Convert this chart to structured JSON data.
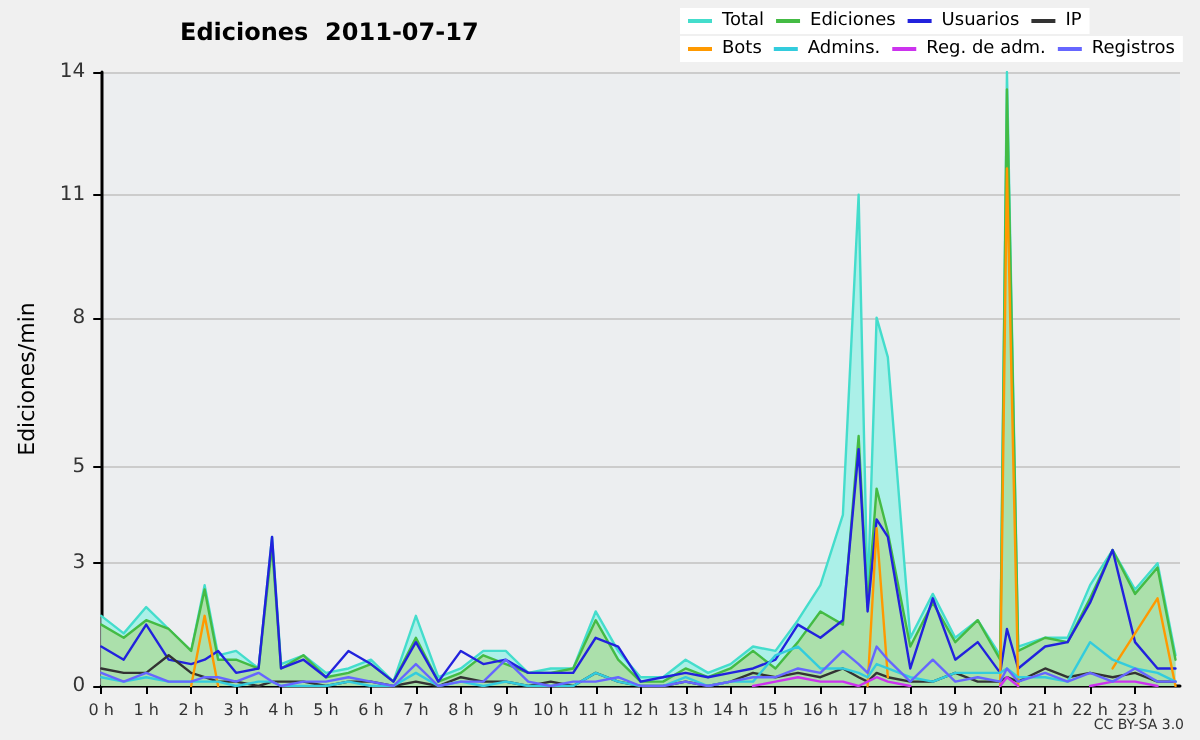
{
  "chart_data": {
    "type": "line",
    "title": "Ediciones  2011-07-17",
    "ylabel": "Ediciones/min",
    "annotations": [
      "CC BY-SA 3.0"
    ],
    "x": [
      0,
      0.5,
      1,
      1.5,
      2,
      2.3,
      2.6,
      3,
      3.5,
      3.8,
      4,
      4.5,
      5,
      5.5,
      6,
      6.5,
      7,
      7.5,
      8,
      8.5,
      9,
      9.5,
      10,
      10.5,
      11,
      11.5,
      12,
      12.5,
      13,
      13.5,
      14,
      14.5,
      15,
      15.5,
      16,
      16.5,
      16.85,
      17.05,
      17.25,
      17.5,
      18,
      18.5,
      19,
      19.5,
      20,
      20.15,
      20.4,
      21,
      21.5,
      22,
      22.5,
      23,
      23.5,
      23.9
    ],
    "series": [
      {
        "name": "Total",
        "type": "area",
        "color": "#44ddcc",
        "values": [
          1.6,
          1.2,
          1.8,
          1.3,
          0.8,
          2.3,
          0.7,
          0.8,
          0.4,
          3.4,
          0.5,
          0.7,
          0.3,
          0.4,
          0.6,
          0.1,
          1.6,
          0.2,
          0.4,
          0.8,
          0.8,
          0.3,
          0.4,
          0.4,
          1.7,
          0.8,
          0.2,
          0.2,
          0.6,
          0.3,
          0.5,
          0.9,
          0.8,
          1.5,
          2.3,
          3.9,
          11.2,
          2.0,
          8.4,
          7.5,
          1.1,
          2.1,
          1.1,
          1.5,
          0.7,
          14,
          0.9,
          1.1,
          1.1,
          2.3,
          3.1,
          2.2,
          2.8,
          0.7
        ]
      },
      {
        "name": "Ediciones",
        "type": "area",
        "color": "#44bb44",
        "values": [
          1.4,
          1.1,
          1.5,
          1.3,
          0.8,
          2.2,
          0.6,
          0.6,
          0.4,
          3.2,
          0.4,
          0.7,
          0.2,
          0.3,
          0.5,
          0.1,
          1.1,
          0.1,
          0.3,
          0.7,
          0.5,
          0.3,
          0.3,
          0.4,
          1.5,
          0.6,
          0.1,
          0.1,
          0.4,
          0.2,
          0.4,
          0.8,
          0.4,
          1.0,
          1.7,
          1.4,
          5.7,
          1.8,
          4.5,
          3.5,
          0.9,
          1.9,
          1.0,
          1.5,
          0.6,
          13.6,
          0.8,
          1.1,
          1.0,
          2.0,
          3.1,
          2.1,
          2.7,
          0.6
        ]
      },
      {
        "name": "Usuarios",
        "type": "line",
        "color": "#2222dd",
        "values": [
          0.9,
          0.6,
          1.4,
          0.6,
          0.5,
          0.6,
          0.8,
          0.3,
          0.4,
          3.4,
          0.4,
          0.6,
          0.2,
          0.8,
          0.5,
          0.1,
          1.0,
          0.1,
          0.8,
          0.5,
          0.6,
          0.3,
          0.3,
          0.3,
          1.1,
          0.9,
          0.1,
          0.2,
          0.3,
          0.2,
          0.3,
          0.4,
          0.6,
          1.4,
          1.1,
          1.5,
          5.4,
          1.7,
          3.8,
          3.4,
          0.4,
          2.0,
          0.6,
          1.0,
          0.3,
          1.3,
          0.4,
          0.9,
          1.0,
          1.9,
          3.1,
          1.0,
          0.4,
          0.4
        ]
      },
      {
        "name": "IP",
        "type": "line",
        "color": "#333333",
        "values": [
          0.4,
          0.3,
          0.3,
          0.7,
          0.3,
          0.2,
          0.1,
          0.1,
          0,
          0.1,
          0.1,
          0.1,
          0,
          0.1,
          0.1,
          0,
          0.1,
          0,
          0.2,
          0.1,
          0.1,
          0,
          0.1,
          0,
          0.3,
          0.1,
          0,
          0,
          0.1,
          0,
          0.1,
          0.3,
          0.2,
          0.3,
          0.2,
          0.4,
          0.2,
          0.1,
          0.3,
          0.2,
          0.1,
          0.1,
          0.3,
          0.1,
          0.1,
          0.2,
          0.1,
          0.4,
          0.2,
          0.3,
          0.2,
          0.3,
          0.1,
          0.1
        ]
      },
      {
        "name": "Bots",
        "type": "line",
        "color": "#ff9900",
        "values": [
          null,
          null,
          null,
          null,
          0,
          1.6,
          0,
          null,
          null,
          null,
          null,
          null,
          null,
          null,
          null,
          null,
          null,
          null,
          null,
          null,
          null,
          null,
          null,
          null,
          null,
          null,
          null,
          null,
          null,
          null,
          null,
          null,
          null,
          null,
          null,
          null,
          null,
          0,
          3.6,
          0.2,
          null,
          null,
          null,
          null,
          0,
          11.8,
          0,
          null,
          null,
          null,
          0.4,
          1.2,
          2.0,
          0
        ]
      },
      {
        "name": "Admins.",
        "type": "line",
        "color": "#33ccdd",
        "values": [
          0.2,
          0.1,
          0.2,
          0.1,
          0.1,
          0.1,
          0.1,
          0,
          0.1,
          0.1,
          0,
          0,
          0,
          0.1,
          0,
          0,
          0.3,
          0,
          0.1,
          0,
          0.1,
          0,
          0,
          0,
          0.3,
          0.1,
          0,
          0,
          0.2,
          0,
          0.1,
          0.1,
          0.7,
          0.9,
          0.4,
          0.4,
          0.3,
          0.2,
          0.5,
          0.4,
          0.2,
          0.1,
          0.3,
          0.3,
          0.3,
          0.4,
          0.2,
          0.2,
          0.1,
          1.0,
          0.6,
          0.4,
          0.3,
          0.1
        ]
      },
      {
        "name": "Reg. de adm.",
        "type": "line",
        "color": "#cc33ee",
        "values": [
          null,
          null,
          null,
          null,
          null,
          null,
          null,
          null,
          null,
          null,
          null,
          null,
          null,
          null,
          null,
          null,
          null,
          null,
          null,
          null,
          null,
          null,
          null,
          null,
          null,
          null,
          null,
          null,
          null,
          null,
          null,
          0,
          0.1,
          0.2,
          0.1,
          0.1,
          0,
          0.1,
          0.2,
          0.1,
          0,
          null,
          null,
          null,
          0,
          0.2,
          0,
          null,
          null,
          0,
          0.1,
          0.1,
          0,
          null
        ]
      },
      {
        "name": "Registros",
        "type": "line",
        "color": "#6666ff",
        "values": [
          0.3,
          0.1,
          0.3,
          0.1,
          0.1,
          0.2,
          0.2,
          0.1,
          0.3,
          0.1,
          0,
          0.1,
          0.1,
          0.2,
          0.1,
          0,
          0.5,
          0,
          0.1,
          0.1,
          0.6,
          0.1,
          0,
          0.1,
          0.1,
          0.2,
          0,
          0,
          0.1,
          0,
          0.1,
          0.2,
          0.2,
          0.4,
          0.3,
          0.8,
          0.5,
          0.3,
          0.9,
          0.6,
          0.1,
          0.6,
          0.1,
          0.2,
          0.1,
          0.4,
          0.1,
          0.3,
          0.1,
          0.3,
          0.1,
          0.4,
          0.1,
          0.1
        ]
      }
    ],
    "xlim": [
      0,
      24
    ],
    "xticks": [
      {
        "value": 0,
        "label": "0 h"
      },
      {
        "value": 1,
        "label": "1 h"
      },
      {
        "value": 2,
        "label": "2 h"
      },
      {
        "value": 3,
        "label": "3 h"
      },
      {
        "value": 4,
        "label": "4 h"
      },
      {
        "value": 5,
        "label": "5 h"
      },
      {
        "value": 6,
        "label": "6 h"
      },
      {
        "value": 7,
        "label": "7 h"
      },
      {
        "value": 8,
        "label": "8 h"
      },
      {
        "value": 9,
        "label": "9 h"
      },
      {
        "value": 10,
        "label": "10 h"
      },
      {
        "value": 11,
        "label": "11 h"
      },
      {
        "value": 12,
        "label": "12 h"
      },
      {
        "value": 13,
        "label": "13 h"
      },
      {
        "value": 14,
        "label": "14 h"
      },
      {
        "value": 15,
        "label": "15 h"
      },
      {
        "value": 16,
        "label": "16 h"
      },
      {
        "value": 17,
        "label": "17 h"
      },
      {
        "value": 18,
        "label": "18 h"
      },
      {
        "value": 19,
        "label": "19 h"
      },
      {
        "value": 20,
        "label": "20 h"
      },
      {
        "value": 21,
        "label": "21 h"
      },
      {
        "value": 22,
        "label": "22 h"
      },
      {
        "value": 23,
        "label": "23 h"
      }
    ],
    "ylim": [
      0,
      14
    ],
    "yticks": [
      {
        "value": 0,
        "label": "0"
      },
      {
        "value": 2.8,
        "label": "3"
      },
      {
        "value": 5,
        "label": "5"
      },
      {
        "value": 8.4,
        "label": "8"
      },
      {
        "value": 11.2,
        "label": "11"
      },
      {
        "value": 14,
        "label": "14"
      }
    ],
    "grid": "y",
    "legend": "top right",
    "marker": "none",
    "line_style": "solid"
  }
}
